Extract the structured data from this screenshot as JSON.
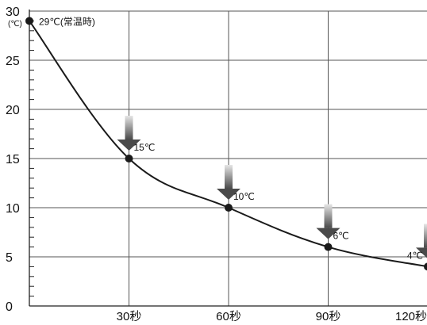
{
  "chart_data": {
    "type": "line",
    "y_unit": "(℃)",
    "ylim": [
      0,
      30
    ],
    "xlim": [
      0,
      120
    ],
    "y_ticks": [
      0,
      5,
      10,
      15,
      20,
      25,
      30
    ],
    "x_ticks": [
      {
        "value": 30,
        "label": "30秒"
      },
      {
        "value": 60,
        "label": "60秒"
      },
      {
        "value": 90,
        "label": "90秒"
      },
      {
        "value": 120,
        "label": "120秒"
      }
    ],
    "grid": true,
    "series": [
      {
        "x": [
          0,
          30,
          60,
          90,
          120
        ],
        "y": [
          29,
          15,
          10,
          6,
          4
        ]
      }
    ],
    "point_labels": [
      "29℃(常温時)",
      "15℃",
      "10℃",
      "6℃",
      "4℃"
    ],
    "colors": {
      "line": "#1a1a1a",
      "grid": "#555555",
      "arrow_dark": "#4a4a4a",
      "arrow_light": "#e6e6e6"
    }
  }
}
